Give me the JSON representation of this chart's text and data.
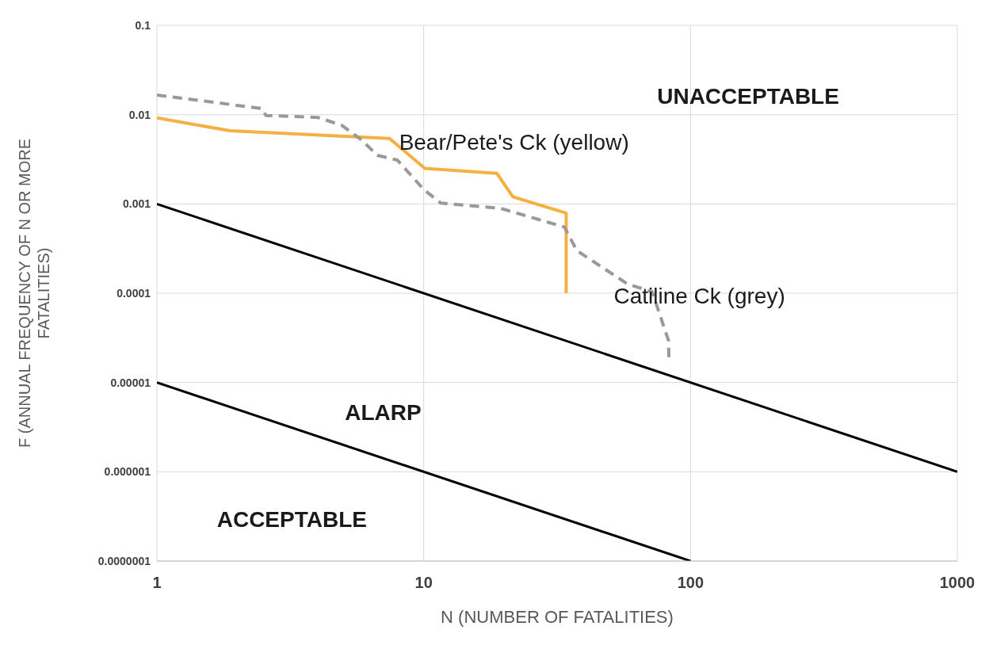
{
  "chart_data": {
    "type": "line",
    "xlabel": "N (NUMBER OF FATALITIES)",
    "ylabel": "F (ANNUAL FREQUENCY OF N OR MORE FATALITIES)",
    "log": "xy",
    "grid": true,
    "legend": false,
    "marker": "none",
    "xlim": [
      1,
      1000
    ],
    "xticks": [
      1,
      10,
      100,
      1000
    ],
    "ylim": [
      1e-07,
      0.1
    ],
    "yticks": [
      {
        "value": 1e-07,
        "label": "0.0000001"
      },
      {
        "value": 1e-06,
        "label": "0.000001"
      },
      {
        "value": 1e-05,
        "label": "0.00001"
      },
      0.0001,
      0.001,
      0.01,
      0.1
    ],
    "annotations": [
      "UNACCEPTABLE",
      "ALARP",
      "ACCEPTABLE"
    ],
    "series": [
      {
        "name": "Bear/Pete's Ck (yellow)",
        "color": "#f5b041",
        "line_style": "solid",
        "x": [
          1,
          1.88,
          7.45,
          10.1,
          18.8,
          21.6,
          34.2,
          34.2
        ],
        "values": [
          0.0092,
          0.0066,
          0.0054,
          0.0025,
          0.0022,
          0.0012,
          0.00079,
          0.0001
        ]
      },
      {
        "name": "Catiline Ck (grey)",
        "color": "#999999",
        "line_style": "dashed",
        "x": [
          1,
          2.48,
          2.56,
          4.01,
          4.93,
          5.85,
          6.7,
          7.97,
          10,
          11.6,
          19.5,
          33.7,
          37.5,
          58.3,
          71.8,
          82.7,
          83
        ],
        "values": [
          0.0166,
          0.0117,
          0.0098,
          0.0093,
          0.0076,
          0.0052,
          0.0035,
          0.0031,
          0.00145,
          0.00102,
          0.00089,
          0.00055,
          0.0003,
          0.000126,
          0.000104,
          2.95e-05,
          1.84e-05
        ]
      },
      {
        "color": "#000000",
        "line_style": "solid",
        "x": [
          1,
          1000
        ],
        "values": [
          0.001,
          1e-06
        ]
      },
      {
        "color": "#000000",
        "line_style": "solid",
        "x": [
          1,
          100
        ],
        "values": [
          1e-05,
          1e-07
        ]
      }
    ]
  }
}
